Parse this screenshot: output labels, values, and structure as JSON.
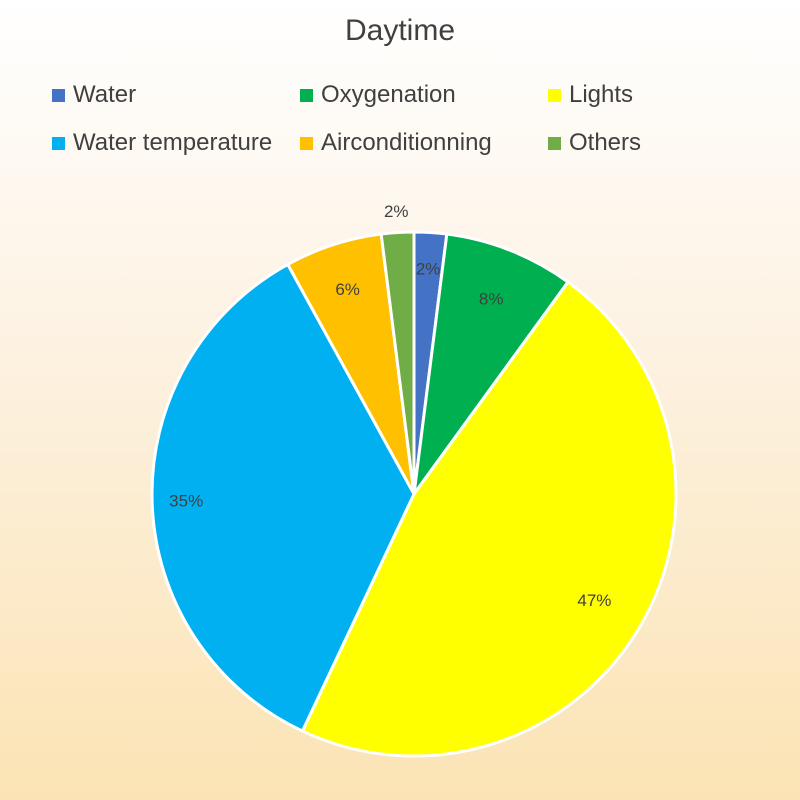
{
  "chart_data": {
    "type": "pie",
    "title": "Daytime",
    "legend_position": "top",
    "slices": [
      {
        "name": "Water",
        "value": 2,
        "label": "2%",
        "color": "#4472C4"
      },
      {
        "name": "Oxygenation",
        "value": 8,
        "label": "8%",
        "color": "#00B050"
      },
      {
        "name": "Lights",
        "value": 47,
        "label": "47%",
        "color": "#FFFF00"
      },
      {
        "name": "Water temperature",
        "value": 35,
        "label": "35%",
        "color": "#00B0F0"
      },
      {
        "name": "Airconditionning",
        "value": 6,
        "label": "6%",
        "color": "#FFC000"
      },
      {
        "name": "Others",
        "value": 2,
        "label": "2%",
        "color": "#70AD47"
      }
    ]
  }
}
